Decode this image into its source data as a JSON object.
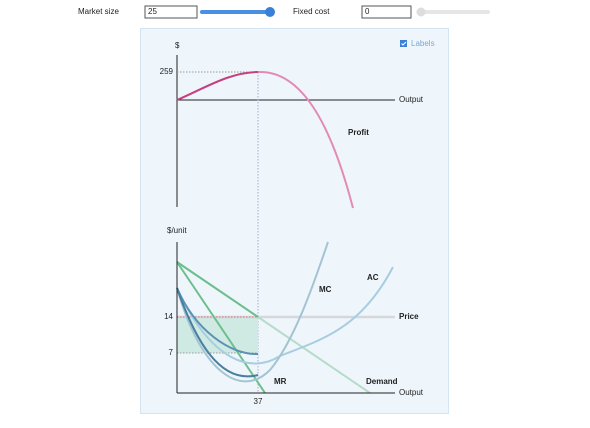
{
  "controls": {
    "market_size": {
      "label": "Market size",
      "value": "25"
    },
    "fixed_cost": {
      "label": "Fixed cost",
      "value": "0"
    }
  },
  "labels_checkbox": "Labels",
  "top_chart": {
    "y_label": "$",
    "y_tick": "259",
    "x_label": "Output",
    "curve_label": "Profit"
  },
  "bottom_chart": {
    "y_label": "$/unit",
    "y_ticks": [
      "14",
      "7"
    ],
    "x_tick": "37",
    "x_label": "Output",
    "curve_labels": {
      "mc": "MC",
      "ac": "AC",
      "price": "Price",
      "mr": "MR",
      "demand": "Demand"
    }
  }
}
